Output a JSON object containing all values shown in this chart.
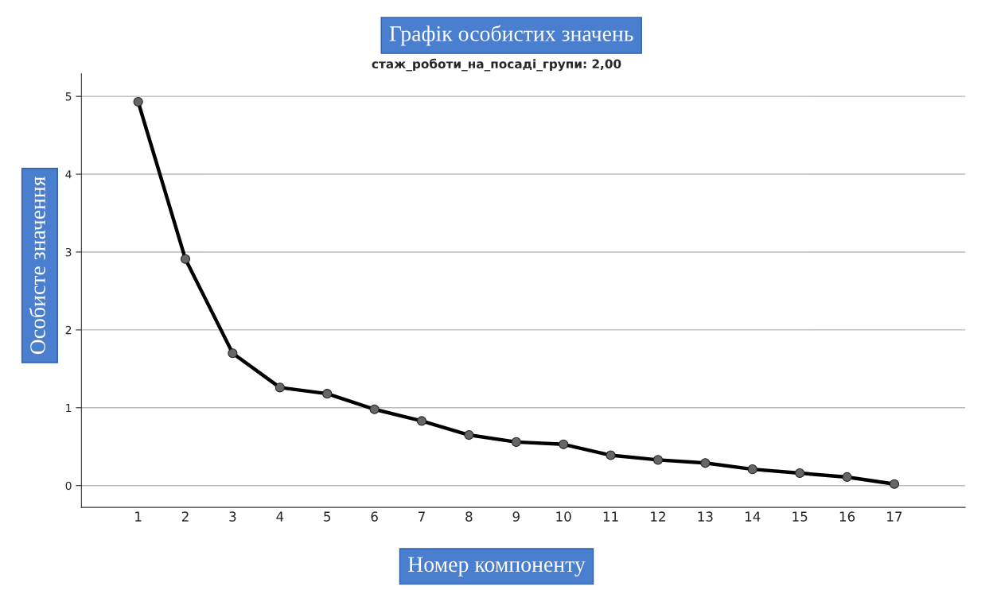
{
  "chart_data": {
    "type": "line",
    "title": "Графік особистих значень",
    "subtitle": "стаж_роботи_на_посаді_групи: 2,00",
    "xlabel": "Номер компоненту",
    "ylabel": "Особисте значення",
    "categories": [
      "1",
      "2",
      "3",
      "4",
      "5",
      "6",
      "7",
      "8",
      "9",
      "10",
      "11",
      "12",
      "13",
      "14",
      "15",
      "16",
      "17"
    ],
    "series": [
      {
        "color": "#000000",
        "values": [
          4.93,
          2.91,
          1.7,
          1.26,
          1.18,
          0.98,
          0.83,
          0.65,
          0.56,
          0.53,
          0.39,
          0.33,
          0.29,
          0.21,
          0.16,
          0.11,
          0.02
        ]
      }
    ],
    "ylim": [
      -0.28,
      5.29
    ],
    "yticks": [
      0,
      1,
      2,
      3,
      4,
      5
    ],
    "grid": "y",
    "marker": "circle",
    "line_style": "solid"
  }
}
